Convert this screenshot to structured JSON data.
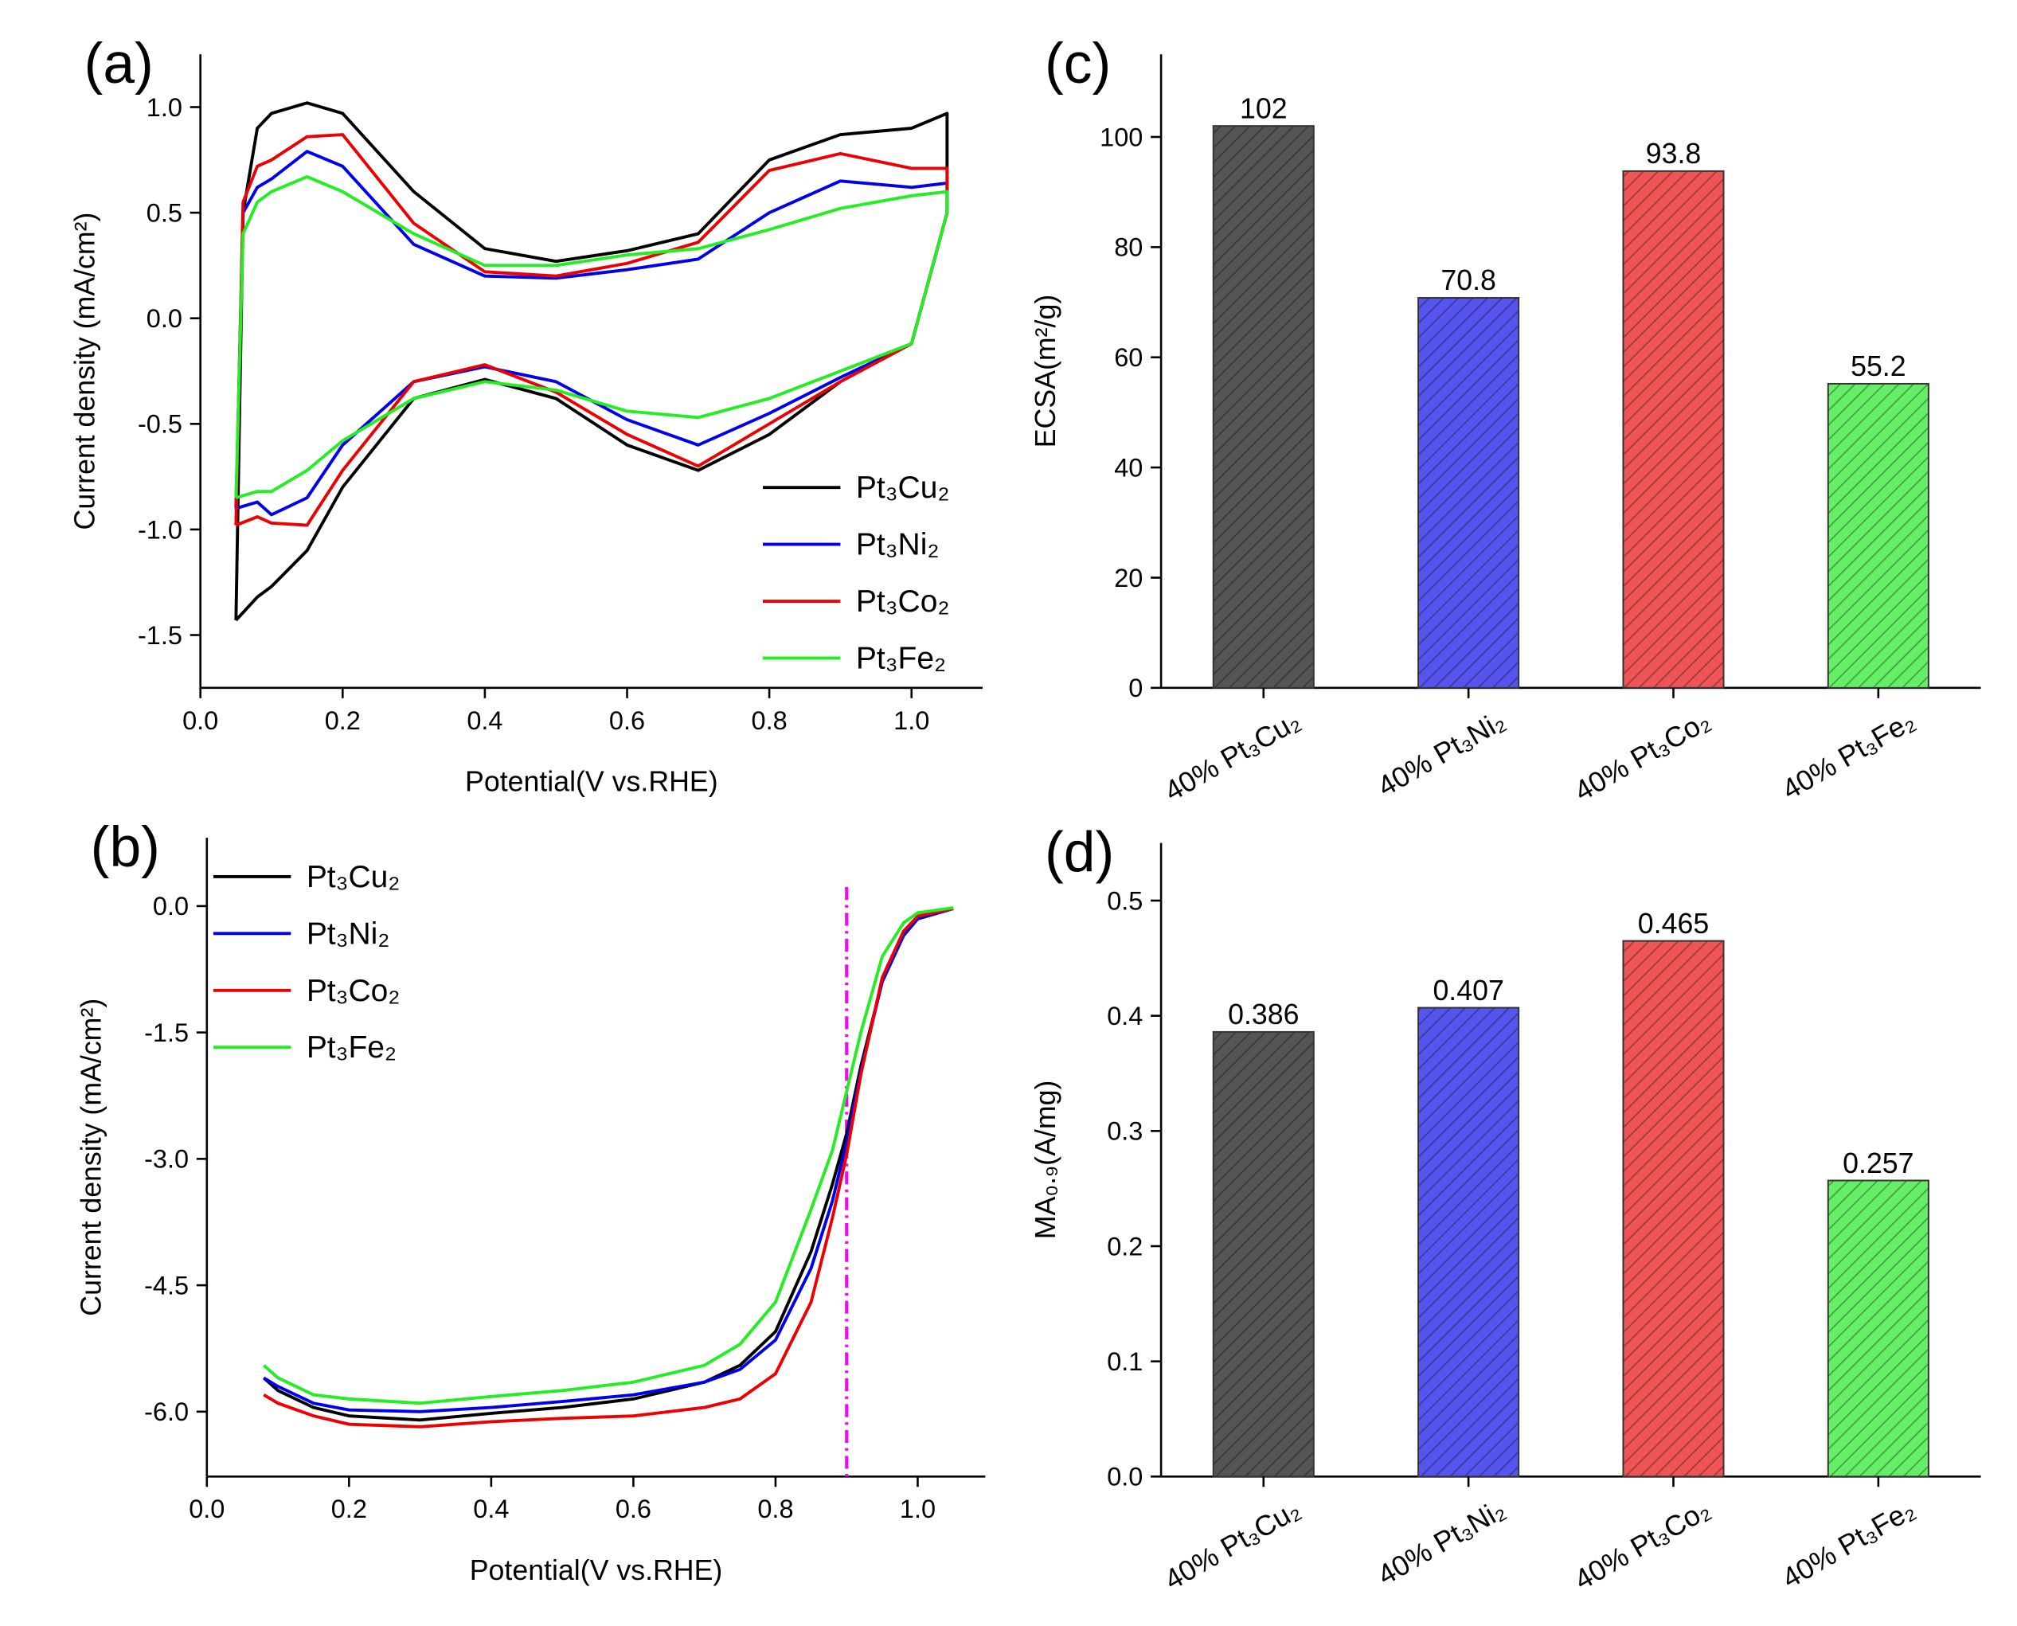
{
  "chart_data": [
    {
      "type": "line",
      "panel_label": "(a)",
      "x_label": "Potential(V vs.RHE)",
      "y_label": "Current density (mA/cm²)",
      "x": [
        0.05,
        0.06,
        0.08,
        0.1,
        0.15,
        0.2,
        0.3,
        0.4,
        0.5,
        0.6,
        0.7,
        0.8,
        0.9,
        1.0,
        1.05,
        1.05,
        1.0,
        0.9,
        0.8,
        0.7,
        0.6,
        0.5,
        0.4,
        0.3,
        0.2,
        0.15,
        0.1,
        0.08,
        0.05
      ],
      "series": [
        {
          "name": "Pt₃Cu₂",
          "color": "#000000",
          "values": [
            -1.43,
            0.5,
            0.9,
            0.97,
            1.02,
            0.97,
            0.6,
            0.33,
            0.27,
            0.32,
            0.4,
            0.75,
            0.87,
            0.9,
            0.97,
            0.5,
            -0.12,
            -0.3,
            -0.55,
            -0.72,
            -0.6,
            -0.38,
            -0.29,
            -0.38,
            -0.8,
            -1.1,
            -1.27,
            -1.32,
            -1.43
          ]
        },
        {
          "name": "Pt₃Ni₂",
          "color": "#0000ee",
          "values": [
            -0.9,
            0.5,
            0.62,
            0.66,
            0.79,
            0.72,
            0.35,
            0.2,
            0.19,
            0.23,
            0.28,
            0.5,
            0.65,
            0.62,
            0.64,
            0.5,
            -0.12,
            -0.28,
            -0.45,
            -0.6,
            -0.48,
            -0.3,
            -0.23,
            -0.3,
            -0.6,
            -0.85,
            -0.93,
            -0.87,
            -0.9
          ]
        },
        {
          "name": "Pt₃Co₂",
          "color": "#ee0000",
          "values": [
            -0.98,
            0.55,
            0.72,
            0.75,
            0.86,
            0.87,
            0.45,
            0.22,
            0.2,
            0.26,
            0.36,
            0.7,
            0.78,
            0.71,
            0.71,
            0.5,
            -0.12,
            -0.3,
            -0.5,
            -0.7,
            -0.55,
            -0.35,
            -0.22,
            -0.3,
            -0.72,
            -0.98,
            -0.97,
            -0.94,
            -0.98
          ]
        },
        {
          "name": "Pt₃Fe₂",
          "color": "#22ee22",
          "values": [
            -0.85,
            0.4,
            0.55,
            0.6,
            0.67,
            0.6,
            0.4,
            0.25,
            0.25,
            0.3,
            0.33,
            0.42,
            0.52,
            0.58,
            0.6,
            0.5,
            -0.12,
            -0.25,
            -0.38,
            -0.47,
            -0.44,
            -0.34,
            -0.3,
            -0.38,
            -0.58,
            -0.72,
            -0.82,
            -0.82,
            -0.85
          ]
        }
      ],
      "xlim": [
        0,
        1.1
      ],
      "xticks": [
        {
          "value": 0,
          "label": "0.0"
        },
        0.2,
        0.4,
        0.6,
        0.8,
        {
          "value": 1,
          "label": "1.0"
        }
      ],
      "ylim": [
        -1.75,
        1.25
      ],
      "yticks": [
        -1.5,
        {
          "value": -1,
          "label": "-1.0"
        },
        -0.5,
        {
          "value": 0,
          "label": "0.0"
        },
        0.5,
        {
          "value": 1,
          "label": "1.0"
        }
      ],
      "legend": "lower right"
    },
    {
      "type": "line",
      "panel_label": "(b)",
      "x_label": "Potential(V vs.RHE)",
      "y_label": "Current density (mA/cm²)",
      "x": [
        0.08,
        0.1,
        0.15,
        0.2,
        0.3,
        0.4,
        0.5,
        0.6,
        0.7,
        0.75,
        0.8,
        0.85,
        0.88,
        0.9,
        0.92,
        0.95,
        0.98,
        1.0,
        1.05
      ],
      "series": [
        {
          "name": "Pt₃Cu₂",
          "color": "#000000",
          "values": [
            -5.6,
            -5.75,
            -5.95,
            -6.05,
            -6.1,
            -6.02,
            -5.95,
            -5.85,
            -5.65,
            -5.45,
            -5.05,
            -4.1,
            -3.3,
            -2.7,
            -1.9,
            -0.9,
            -0.35,
            -0.15,
            -0.03
          ]
        },
        {
          "name": "Pt₃Ni₂",
          "color": "#0000ee",
          "values": [
            -5.6,
            -5.7,
            -5.9,
            -5.98,
            -6.0,
            -5.95,
            -5.88,
            -5.8,
            -5.65,
            -5.5,
            -5.15,
            -4.3,
            -3.5,
            -2.8,
            -1.95,
            -0.9,
            -0.35,
            -0.15,
            -0.03
          ]
        },
        {
          "name": "Pt₃Co₂",
          "color": "#ee0000",
          "values": [
            -5.8,
            -5.9,
            -6.05,
            -6.15,
            -6.18,
            -6.12,
            -6.08,
            -6.05,
            -5.95,
            -5.85,
            -5.55,
            -4.7,
            -3.7,
            -2.95,
            -2.0,
            -0.85,
            -0.3,
            -0.12,
            -0.03
          ]
        },
        {
          "name": "Pt₃Fe₂",
          "color": "#22ee22",
          "values": [
            -5.45,
            -5.6,
            -5.8,
            -5.85,
            -5.9,
            -5.82,
            -5.75,
            -5.65,
            -5.45,
            -5.2,
            -4.7,
            -3.6,
            -2.9,
            -2.2,
            -1.5,
            -0.6,
            -0.2,
            -0.08,
            -0.02
          ]
        }
      ],
      "vline": {
        "x": 0.9,
        "color": "#ff00ff"
      },
      "xlim": [
        0,
        1.095
      ],
      "xticks": [
        {
          "value": 0,
          "label": "0.0"
        },
        0.2,
        0.4,
        0.6,
        0.8,
        {
          "value": 1,
          "label": "1.0"
        }
      ],
      "ylim": [
        -6.77,
        0.81
      ],
      "yticks": [
        {
          "value": -6,
          "label": "-6.0"
        },
        -4.5,
        {
          "value": -3,
          "label": "-3.0"
        },
        -1.5,
        {
          "value": 0,
          "label": "0.0"
        }
      ],
      "legend": "upper left"
    },
    {
      "type": "bar",
      "panel_label": "(c)",
      "y_label": "ECSA(m²/g)",
      "categories": [
        "40% Pt₃Cu₂",
        "40% Pt₃Ni₂",
        "40% Pt₃Co₂",
        "40% Pt₃Fe₂"
      ],
      "values": [
        102,
        70.8,
        93.8,
        55.2
      ],
      "colors": [
        "#555555",
        "#5555ee",
        "#ee5555",
        "#66ee66"
      ],
      "ylim": [
        0,
        115
      ],
      "yticks": [
        0,
        20,
        40,
        60,
        80,
        100
      ]
    },
    {
      "type": "bar",
      "panel_label": "(d)",
      "y_label": "MA₀.₉(A/mg)",
      "categories": [
        "40% Pt₃Cu₂",
        "40% Pt₃Ni₂",
        "40% Pt₃Co₂",
        "40% Pt₃Fe₂"
      ],
      "values": [
        0.386,
        0.407,
        0.465,
        0.257
      ],
      "colors": [
        "#555555",
        "#5555ee",
        "#ee5555",
        "#66ee66"
      ],
      "ylim": [
        0,
        0.55
      ],
      "yticks": [
        {
          "value": 0,
          "label": "0.0"
        },
        0.1,
        0.2,
        0.3,
        0.4,
        0.5
      ]
    }
  ]
}
